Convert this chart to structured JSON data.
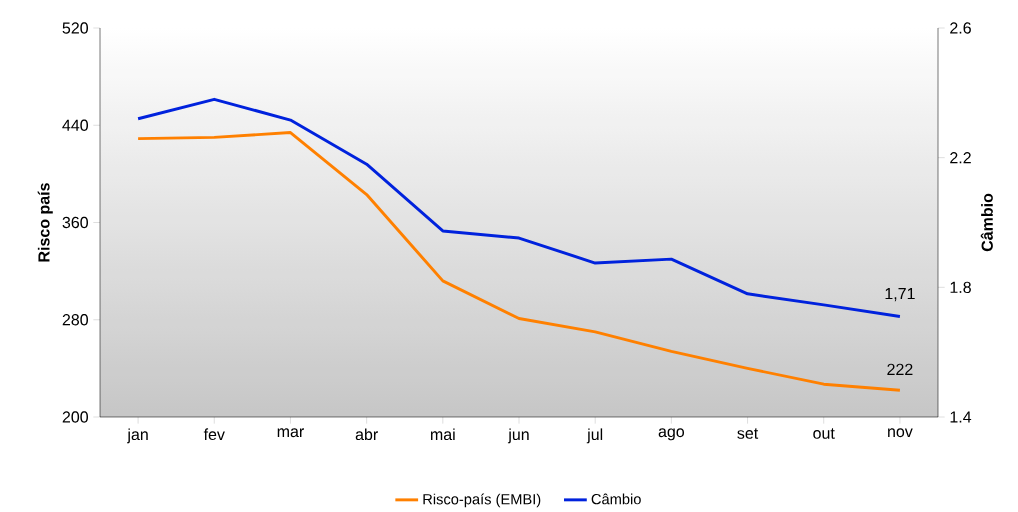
{
  "chart_data": {
    "type": "line",
    "categories": [
      "jan",
      "fev",
      "mar",
      "abr",
      "mai",
      "jun",
      "jul",
      "ago",
      "set",
      "out",
      "nov"
    ],
    "ylabel": "Risco país",
    "y2label": "Câmbio",
    "ylim": [
      200,
      520
    ],
    "yticks": [
      200,
      280,
      360,
      440,
      520
    ],
    "y2lim": [
      1.4,
      2.6
    ],
    "y2ticks": [
      1.4,
      1.8,
      2.2,
      2.6
    ],
    "legend": "bottom",
    "grid": false,
    "marker": "none",
    "line_style": "solid",
    "series": [
      {
        "name": "Risco-país (EMBI)",
        "color": "#ff8000",
        "values": [
          429,
          430,
          434,
          383,
          312,
          281,
          270,
          254,
          240,
          227,
          222
        ],
        "value_labels": [
          null,
          null,
          null,
          null,
          null,
          null,
          null,
          null,
          null,
          null,
          "222"
        ]
      },
      {
        "name": "Câmbio",
        "color": "#0022dd",
        "axis": "y2",
        "values": [
          2.32,
          2.38,
          2.316,
          2.18,
          1.974,
          1.952,
          1.875,
          1.887,
          1.78,
          1.746,
          1.71
        ],
        "value_labels": [
          null,
          null,
          null,
          null,
          null,
          null,
          null,
          null,
          null,
          null,
          "1,71"
        ]
      }
    ]
  }
}
